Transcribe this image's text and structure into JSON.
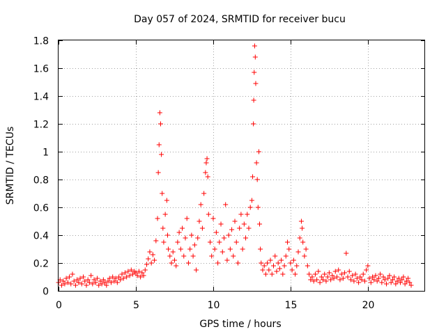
{
  "chart_data": {
    "type": "scatter",
    "title": "Day 057 of 2024, SRMTID for receiver bucu",
    "xlabel": "GPS time / hours",
    "ylabel": "SRMTID / TECUs",
    "xlim": [
      0,
      23.7
    ],
    "ylim": [
      0,
      1.8
    ],
    "xticks": [
      {
        "value": 0,
        "label": "0"
      },
      {
        "value": 5,
        "label": "5"
      },
      {
        "value": 10,
        "label": "10"
      },
      {
        "value": 15,
        "label": "15"
      },
      {
        "value": 20,
        "label": "20"
      }
    ],
    "yticks": [
      {
        "value": 0,
        "label": "0"
      },
      {
        "value": 0.2,
        "label": "0.2"
      },
      {
        "value": 0.4,
        "label": "0.4"
      },
      {
        "value": 0.6,
        "label": "0.6"
      },
      {
        "value": 0.8,
        "label": "0.8"
      },
      {
        "value": 1.0,
        "label": "1"
      },
      {
        "value": 1.2,
        "label": "1.2"
      },
      {
        "value": 1.4,
        "label": "1.4"
      },
      {
        "value": 1.6,
        "label": "1.6"
      },
      {
        "value": 1.8,
        "label": "1.8"
      }
    ],
    "grid": true,
    "marker": "+",
    "color": "#ff0000",
    "series": [
      {
        "name": "SRMTID",
        "points": [
          [
            0.0,
            0.06
          ],
          [
            0.1,
            0.08
          ],
          [
            0.2,
            0.04
          ],
          [
            0.3,
            0.07
          ],
          [
            0.4,
            0.05
          ],
          [
            0.5,
            0.09
          ],
          [
            0.6,
            0.06
          ],
          [
            0.7,
            0.1
          ],
          [
            0.8,
            0.05
          ],
          [
            0.9,
            0.12
          ],
          [
            1.0,
            0.07
          ],
          [
            1.1,
            0.04
          ],
          [
            1.2,
            0.08
          ],
          [
            1.3,
            0.06
          ],
          [
            1.4,
            0.09
          ],
          [
            1.5,
            0.05
          ],
          [
            1.6,
            0.1
          ],
          [
            1.7,
            0.07
          ],
          [
            1.8,
            0.04
          ],
          [
            1.9,
            0.08
          ],
          [
            2.0,
            0.06
          ],
          [
            2.1,
            0.11
          ],
          [
            2.2,
            0.05
          ],
          [
            2.3,
            0.08
          ],
          [
            2.4,
            0.06
          ],
          [
            2.5,
            0.09
          ],
          [
            2.6,
            0.04
          ],
          [
            2.7,
            0.07
          ],
          [
            2.8,
            0.05
          ],
          [
            2.9,
            0.08
          ],
          [
            3.0,
            0.06
          ],
          [
            3.1,
            0.04
          ],
          [
            3.2,
            0.07
          ],
          [
            3.3,
            0.09
          ],
          [
            3.4,
            0.06
          ],
          [
            3.5,
            0.1
          ],
          [
            3.6,
            0.07
          ],
          [
            3.7,
            0.09
          ],
          [
            3.8,
            0.06
          ],
          [
            3.9,
            0.1
          ],
          [
            4.0,
            0.08
          ],
          [
            4.1,
            0.12
          ],
          [
            4.2,
            0.09
          ],
          [
            4.3,
            0.13
          ],
          [
            4.4,
            0.1
          ],
          [
            4.5,
            0.14
          ],
          [
            4.6,
            0.11
          ],
          [
            4.7,
            0.15
          ],
          [
            4.8,
            0.12
          ],
          [
            4.9,
            0.14
          ],
          [
            5.0,
            0.13
          ],
          [
            5.1,
            0.11
          ],
          [
            5.2,
            0.14
          ],
          [
            5.3,
            0.1
          ],
          [
            5.4,
            0.13
          ],
          [
            5.5,
            0.11
          ],
          [
            5.6,
            0.15
          ],
          [
            5.7,
            0.19
          ],
          [
            5.8,
            0.23
          ],
          [
            5.9,
            0.28
          ],
          [
            6.0,
            0.2
          ],
          [
            6.1,
            0.26
          ],
          [
            6.2,
            0.22
          ],
          [
            6.3,
            0.36
          ],
          [
            6.4,
            0.52
          ],
          [
            6.45,
            0.85
          ],
          [
            6.5,
            1.05
          ],
          [
            6.55,
            1.28
          ],
          [
            6.6,
            1.2
          ],
          [
            6.65,
            0.98
          ],
          [
            6.7,
            0.7
          ],
          [
            6.75,
            0.45
          ],
          [
            6.8,
            0.35
          ],
          [
            6.9,
            0.55
          ],
          [
            7.0,
            0.65
          ],
          [
            7.05,
            0.4
          ],
          [
            7.1,
            0.3
          ],
          [
            7.2,
            0.25
          ],
          [
            7.3,
            0.2
          ],
          [
            7.4,
            0.28
          ],
          [
            7.5,
            0.22
          ],
          [
            7.6,
            0.18
          ],
          [
            7.7,
            0.35
          ],
          [
            7.8,
            0.42
          ],
          [
            7.9,
            0.3
          ],
          [
            8.0,
            0.45
          ],
          [
            8.1,
            0.25
          ],
          [
            8.2,
            0.38
          ],
          [
            8.3,
            0.52
          ],
          [
            8.4,
            0.2
          ],
          [
            8.5,
            0.3
          ],
          [
            8.6,
            0.4
          ],
          [
            8.7,
            0.25
          ],
          [
            8.8,
            0.33
          ],
          [
            8.9,
            0.15
          ],
          [
            9.0,
            0.38
          ],
          [
            9.1,
            0.5
          ],
          [
            9.2,
            0.62
          ],
          [
            9.3,
            0.45
          ],
          [
            9.4,
            0.7
          ],
          [
            9.5,
            0.85
          ],
          [
            9.55,
            0.92
          ],
          [
            9.6,
            0.95
          ],
          [
            9.65,
            0.82
          ],
          [
            9.7,
            0.55
          ],
          [
            9.8,
            0.35
          ],
          [
            9.9,
            0.25
          ],
          [
            10.0,
            0.52
          ],
          [
            10.1,
            0.3
          ],
          [
            10.2,
            0.42
          ],
          [
            10.3,
            0.2
          ],
          [
            10.4,
            0.35
          ],
          [
            10.5,
            0.48
          ],
          [
            10.6,
            0.28
          ],
          [
            10.7,
            0.38
          ],
          [
            10.8,
            0.62
          ],
          [
            10.9,
            0.22
          ],
          [
            11.0,
            0.4
          ],
          [
            11.1,
            0.3
          ],
          [
            11.2,
            0.44
          ],
          [
            11.3,
            0.25
          ],
          [
            11.4,
            0.5
          ],
          [
            11.5,
            0.35
          ],
          [
            11.6,
            0.2
          ],
          [
            11.7,
            0.45
          ],
          [
            11.8,
            0.55
          ],
          [
            11.9,
            0.3
          ],
          [
            12.0,
            0.48
          ],
          [
            12.1,
            0.38
          ],
          [
            12.2,
            0.55
          ],
          [
            12.3,
            0.45
          ],
          [
            12.4,
            0.6
          ],
          [
            12.5,
            0.65
          ],
          [
            12.55,
            0.82
          ],
          [
            12.6,
            1.2
          ],
          [
            12.62,
            1.37
          ],
          [
            12.65,
            1.57
          ],
          [
            12.68,
            1.76
          ],
          [
            12.72,
            1.68
          ],
          [
            12.75,
            1.49
          ],
          [
            12.8,
            0.92
          ],
          [
            12.85,
            0.8
          ],
          [
            12.9,
            0.6
          ],
          [
            12.95,
            1.0
          ],
          [
            13.0,
            0.48
          ],
          [
            13.05,
            0.3
          ],
          [
            13.1,
            0.2
          ],
          [
            13.2,
            0.15
          ],
          [
            13.3,
            0.18
          ],
          [
            13.4,
            0.12
          ],
          [
            13.5,
            0.2
          ],
          [
            13.6,
            0.15
          ],
          [
            13.7,
            0.22
          ],
          [
            13.8,
            0.12
          ],
          [
            13.9,
            0.18
          ],
          [
            14.0,
            0.25
          ],
          [
            14.1,
            0.14
          ],
          [
            14.2,
            0.2
          ],
          [
            14.3,
            0.16
          ],
          [
            14.4,
            0.22
          ],
          [
            14.5,
            0.12
          ],
          [
            14.6,
            0.18
          ],
          [
            14.7,
            0.25
          ],
          [
            14.8,
            0.35
          ],
          [
            14.9,
            0.3
          ],
          [
            15.0,
            0.2
          ],
          [
            15.1,
            0.15
          ],
          [
            15.2,
            0.22
          ],
          [
            15.3,
            0.12
          ],
          [
            15.4,
            0.18
          ],
          [
            15.5,
            0.28
          ],
          [
            15.6,
            0.38
          ],
          [
            15.7,
            0.5
          ],
          [
            15.75,
            0.45
          ],
          [
            15.8,
            0.35
          ],
          [
            15.9,
            0.25
          ],
          [
            16.0,
            0.3
          ],
          [
            16.1,
            0.18
          ],
          [
            16.2,
            0.12
          ],
          [
            16.3,
            0.08
          ],
          [
            16.4,
            0.1
          ],
          [
            16.5,
            0.07
          ],
          [
            16.6,
            0.12
          ],
          [
            16.7,
            0.08
          ],
          [
            16.8,
            0.14
          ],
          [
            16.9,
            0.06
          ],
          [
            17.0,
            0.1
          ],
          [
            17.1,
            0.08
          ],
          [
            17.2,
            0.12
          ],
          [
            17.3,
            0.07
          ],
          [
            17.4,
            0.1
          ],
          [
            17.5,
            0.13
          ],
          [
            17.6,
            0.08
          ],
          [
            17.7,
            0.11
          ],
          [
            17.8,
            0.09
          ],
          [
            17.9,
            0.14
          ],
          [
            18.0,
            0.1
          ],
          [
            18.1,
            0.15
          ],
          [
            18.2,
            0.08
          ],
          [
            18.3,
            0.12
          ],
          [
            18.4,
            0.09
          ],
          [
            18.5,
            0.13
          ],
          [
            18.6,
            0.27
          ],
          [
            18.7,
            0.1
          ],
          [
            18.8,
            0.14
          ],
          [
            18.9,
            0.08
          ],
          [
            19.0,
            0.11
          ],
          [
            19.1,
            0.07
          ],
          [
            19.2,
            0.12
          ],
          [
            19.3,
            0.09
          ],
          [
            19.4,
            0.06
          ],
          [
            19.5,
            0.1
          ],
          [
            19.6,
            0.08
          ],
          [
            19.7,
            0.12
          ],
          [
            19.8,
            0.07
          ],
          [
            19.9,
            0.15
          ],
          [
            20.0,
            0.18
          ],
          [
            20.1,
            0.09
          ],
          [
            20.2,
            0.06
          ],
          [
            20.3,
            0.1
          ],
          [
            20.4,
            0.08
          ],
          [
            20.5,
            0.11
          ],
          [
            20.6,
            0.07
          ],
          [
            20.7,
            0.09
          ],
          [
            20.8,
            0.12
          ],
          [
            20.9,
            0.06
          ],
          [
            21.0,
            0.1
          ],
          [
            21.1,
            0.08
          ],
          [
            21.2,
            0.05
          ],
          [
            21.3,
            0.09
          ],
          [
            21.4,
            0.11
          ],
          [
            21.5,
            0.06
          ],
          [
            21.6,
            0.08
          ],
          [
            21.7,
            0.1
          ],
          [
            21.8,
            0.05
          ],
          [
            21.9,
            0.07
          ],
          [
            22.0,
            0.09
          ],
          [
            22.1,
            0.06
          ],
          [
            22.2,
            0.08
          ],
          [
            22.3,
            0.1
          ],
          [
            22.4,
            0.05
          ],
          [
            22.5,
            0.07
          ],
          [
            22.6,
            0.09
          ],
          [
            22.7,
            0.06
          ],
          [
            22.8,
            0.04
          ]
        ]
      }
    ]
  }
}
